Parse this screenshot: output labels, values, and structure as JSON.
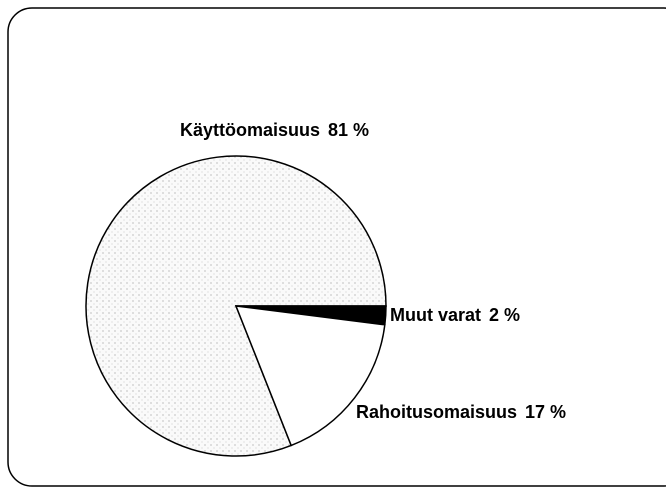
{
  "chart_data": {
    "type": "pie",
    "categories": [
      "Käyttöomaisuus",
      "Muut varat",
      "Rahoitusomaisuus"
    ],
    "values": [
      81,
      2,
      17
    ],
    "value_labels": [
      "81 %",
      "2 %",
      "17 %"
    ],
    "colors": [
      "#ececec",
      "#000000",
      "#ffffff"
    ]
  }
}
